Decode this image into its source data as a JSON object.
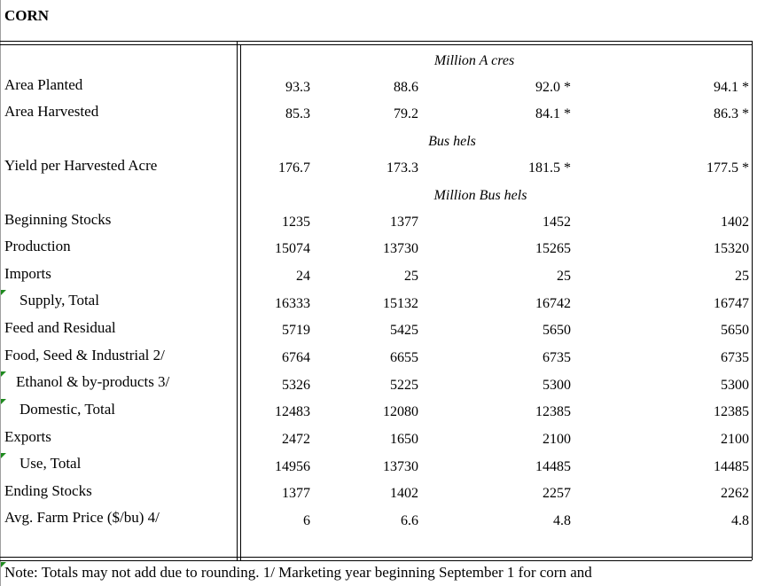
{
  "title": "CORN",
  "units": {
    "acres": "Million A cres",
    "bushels": "Bus hels",
    "million_bushels": "Million Bus hels"
  },
  "rows": [
    {
      "label": "Area Planted",
      "values": [
        "93.3",
        "88.6",
        "92.0 *",
        "94.1 *"
      ]
    },
    {
      "label": "Area Harvested",
      "values": [
        "85.3",
        "79.2",
        "84.1 *",
        "86.3 *"
      ]
    },
    {
      "label": "Yield per Harvested Acre",
      "values": [
        "176.7",
        "173.3",
        "181.5 *",
        "177.5 *"
      ]
    },
    {
      "label": "Beginning Stocks",
      "values": [
        "1235",
        "1377",
        "1452",
        "1402"
      ]
    },
    {
      "label": "Production",
      "values": [
        "15074",
        "13730",
        "15265",
        "15320"
      ]
    },
    {
      "label": "Imports",
      "values": [
        "24",
        "25",
        "25",
        "25"
      ]
    },
    {
      "label": "Supply, Total",
      "values": [
        "16333",
        "15132",
        "16742",
        "16747"
      ]
    },
    {
      "label": "Feed and Residual",
      "values": [
        "5719",
        "5425",
        "5650",
        "5650"
      ]
    },
    {
      "label": "Food, Seed & Industrial 2/",
      "values": [
        "6764",
        "6655",
        "6735",
        "6735"
      ]
    },
    {
      "label": "Ethanol & by-products 3/",
      "values": [
        "5326",
        "5225",
        "5300",
        "5300"
      ]
    },
    {
      "label": "Domestic, Total",
      "values": [
        "12483",
        "12080",
        "12385",
        "12385"
      ]
    },
    {
      "label": "Exports",
      "values": [
        "2472",
        "1650",
        "2100",
        "2100"
      ]
    },
    {
      "label": "Use, Total",
      "values": [
        "14956",
        "13730",
        "14485",
        "14485"
      ]
    },
    {
      "label": "Ending Stocks",
      "values": [
        "1377",
        "1402",
        "2257",
        "2262"
      ]
    },
    {
      "label": "Avg. Farm Price ($/bu)  4/",
      "values": [
        "6",
        "6.6",
        "4.8",
        "4.8"
      ]
    }
  ],
  "note": "Note:  Totals may not add due to rounding.  1/ Marketing year beginning September 1 for corn and"
}
